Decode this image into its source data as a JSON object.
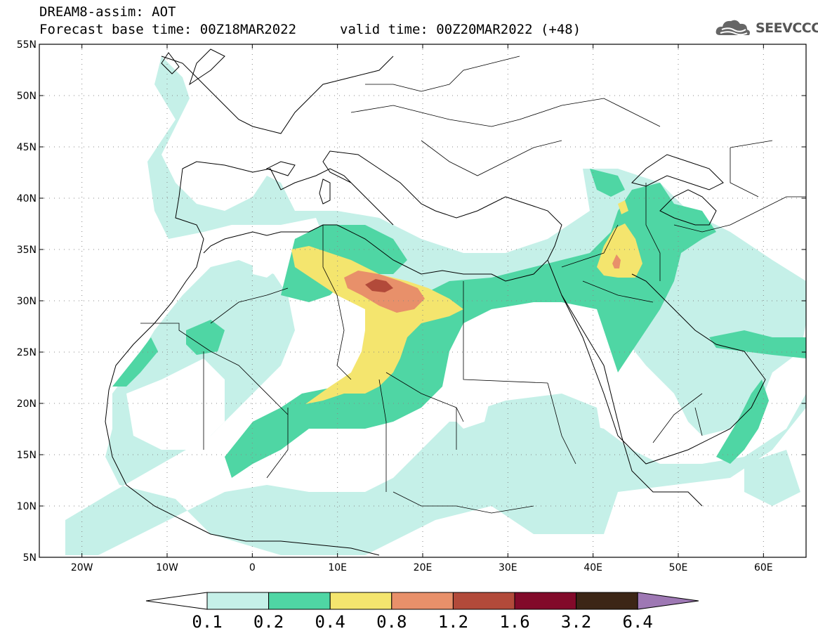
{
  "header": {
    "title": "DREAM8-assim: AOT",
    "base_time": "Forecast base time: 00Z18MAR2022",
    "valid_time": "valid time: 00Z20MAR2022 (+48)"
  },
  "logo": {
    "text": "SEEVCCC",
    "icon": "cloud-logo-icon"
  },
  "map": {
    "lon_range": [
      -25,
      65
    ],
    "lat_range": [
      5,
      55
    ],
    "lat_labels": [
      "55N",
      "50N",
      "45N",
      "40N",
      "35N",
      "30N",
      "25N",
      "20N",
      "15N",
      "10N",
      "5N"
    ],
    "lat_values": [
      55,
      50,
      45,
      40,
      35,
      30,
      25,
      20,
      15,
      10,
      5
    ],
    "lon_labels": [
      "20W",
      "10W",
      "0",
      "10E",
      "20E",
      "30E",
      "40E",
      "50E",
      "60E"
    ],
    "lon_values": [
      -20,
      -10,
      0,
      10,
      20,
      30,
      40,
      50,
      60
    ],
    "grid": "dotted"
  },
  "colorbar": {
    "levels": [
      "0.1",
      "0.2",
      "0.4",
      "0.8",
      "1.2",
      "1.6",
      "3.2",
      "6.4"
    ],
    "colors": [
      "#c5f0e8",
      "#4fd6a4",
      "#f4e56e",
      "#e8906a",
      "#b24a3a",
      "#820a2a",
      "#3c2616",
      "#9e78b4"
    ],
    "under_color": "#ffffff"
  }
}
